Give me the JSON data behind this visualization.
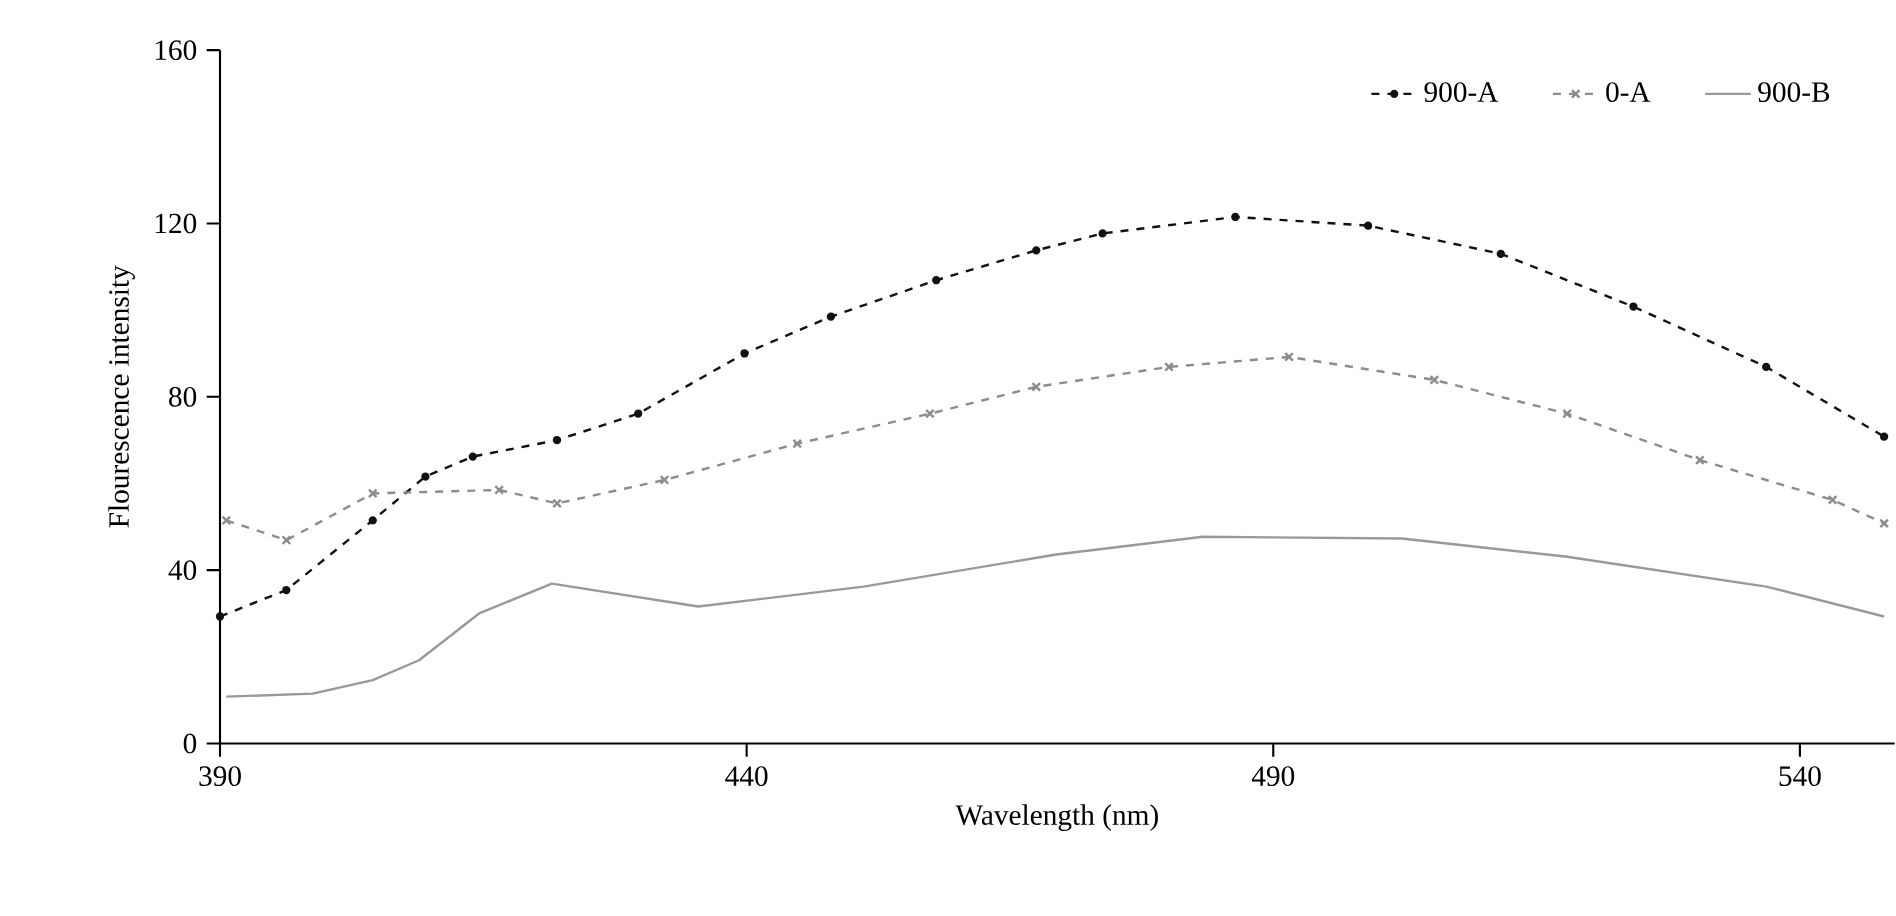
{
  "chart_data": {
    "type": "line",
    "xlabel": "Wavelength (nm)",
    "ylabel": "Flourescence intensity",
    "xlim": [
      390,
      549
    ],
    "xticks": [
      390,
      440,
      490,
      540
    ],
    "ylim": [
      0,
      160
    ],
    "yticks": [
      0,
      40,
      80,
      120,
      160
    ],
    "legend": "top right",
    "grid": false,
    "series": [
      {
        "name": "900-A",
        "color": "#111111",
        "marker": "circle",
        "line_style": "dashed",
        "x": [
          390,
          396.3,
          404.5,
          409.5,
          414,
          422,
          429.7,
          439.8,
          448,
          458,
          467.5,
          473.8,
          486.4,
          499,
          511.6,
          524.2,
          536.8,
          548
        ],
        "values": [
          29.3,
          35.4,
          51.5,
          61.6,
          66.2,
          70,
          76.1,
          90,
          98.5,
          106.9,
          113.8,
          117.7,
          121.5,
          119.5,
          113,
          100.8,
          86.9,
          70.8
        ]
      },
      {
        "name": "0-A",
        "color": "#8c8c8c",
        "marker": "cross",
        "line_style": "dashed",
        "x": [
          390.6,
          396.3,
          404.5,
          416.5,
          422,
          432.2,
          444.8,
          457.4,
          467.5,
          480.1,
          491.5,
          505.3,
          517.9,
          530.5,
          543.1,
          548
        ],
        "values": [
          51.5,
          46.9,
          57.7,
          58.5,
          55.4,
          60.8,
          69.2,
          76.1,
          82.3,
          86.9,
          89.2,
          83.9,
          76.1,
          65.4,
          56.2,
          50.8
        ]
      },
      {
        "name": "900-B",
        "color": "#999999",
        "marker": "none",
        "line_style": "solid",
        "x": [
          390.6,
          398.8,
          404.5,
          408.9,
          414.6,
          421.5,
          435.4,
          451.1,
          469.4,
          483.3,
          502.2,
          517.9,
          536.8,
          548
        ],
        "values": [
          10.8,
          11.5,
          14.6,
          19.2,
          30,
          36.9,
          31.6,
          36.2,
          43.6,
          47.7,
          47.3,
          43.1,
          36.2,
          29.3
        ]
      }
    ]
  }
}
